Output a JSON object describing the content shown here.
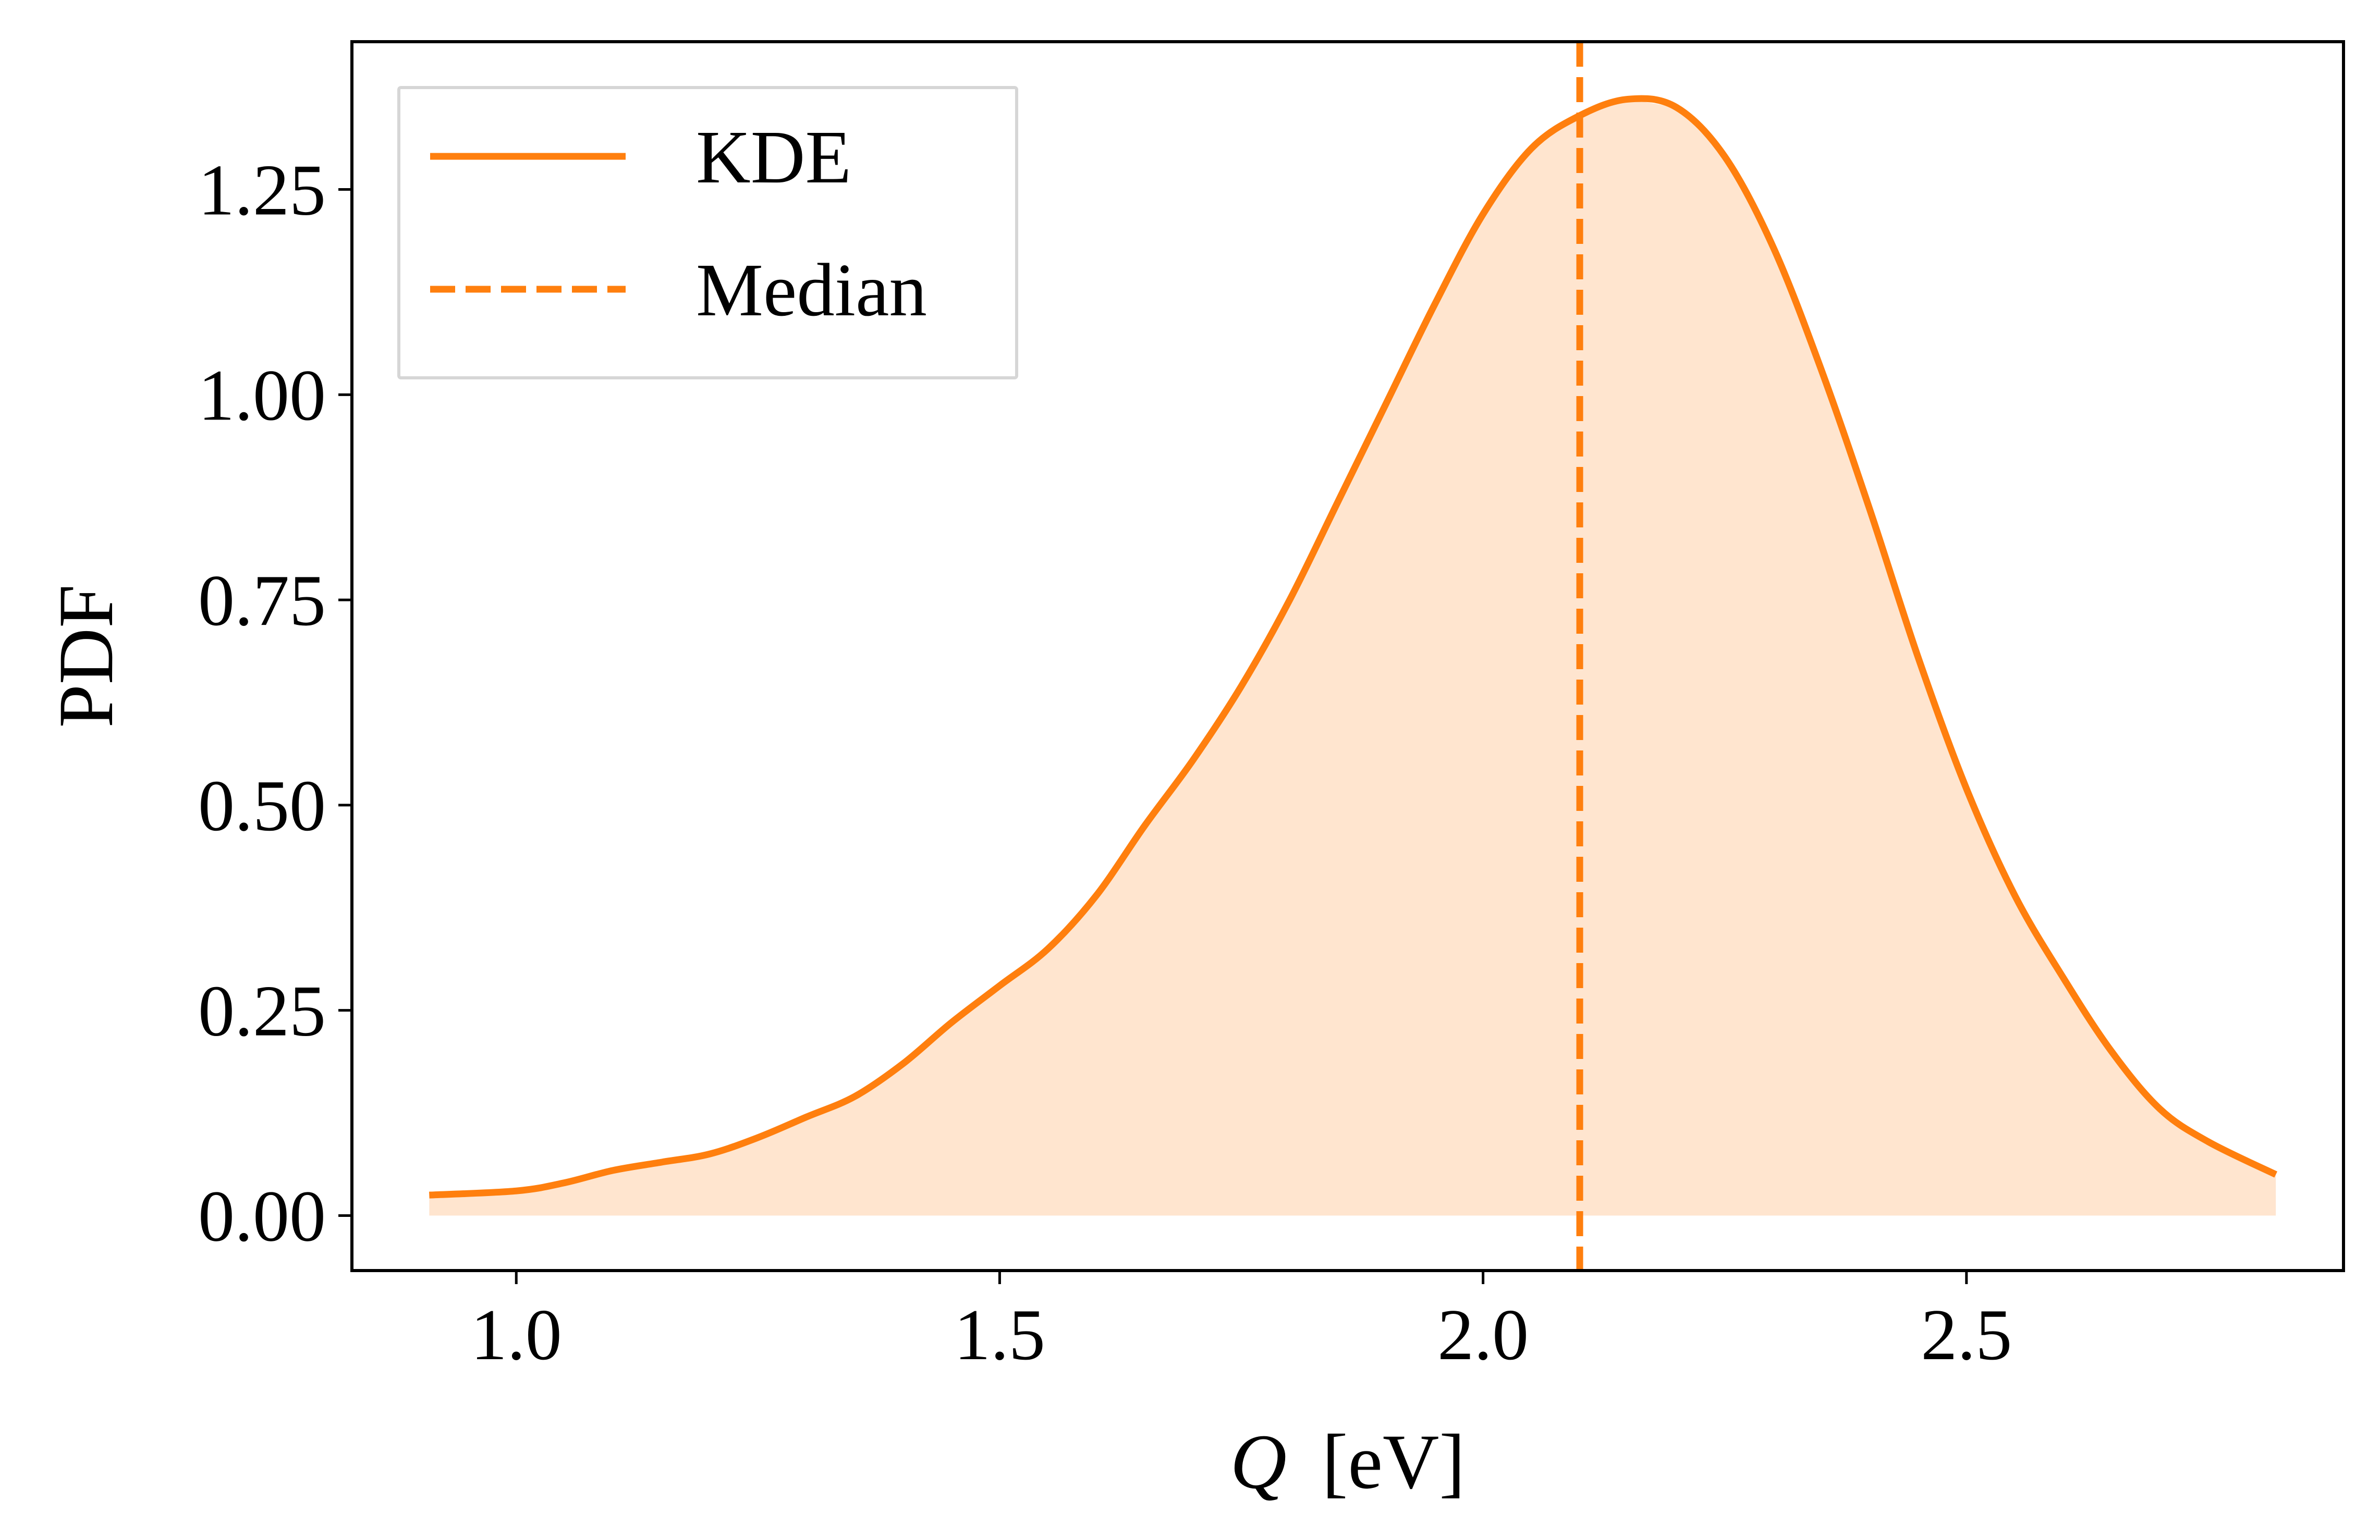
{
  "chart_data": {
    "type": "area",
    "xlabel": "Q [eV]",
    "xlabel_parts": {
      "symbol": "Q",
      "unit": "[eV]"
    },
    "ylabel": "PDF",
    "xlim": [
      0.83,
      2.89
    ],
    "ylim": [
      -0.067,
      1.43
    ],
    "x_ticks": [
      1.0,
      1.5,
      2.0,
      2.5
    ],
    "x_tick_labels": [
      "1.0",
      "1.5",
      "2.0",
      "2.5"
    ],
    "y_ticks": [
      0.0,
      0.25,
      0.5,
      0.75,
      1.0,
      1.25
    ],
    "y_tick_labels": [
      "0.00",
      "0.25",
      "0.50",
      "0.75",
      "1.00",
      "1.25"
    ],
    "grid": false,
    "legend": {
      "position": "top-left",
      "entries": [
        {
          "label": "KDE",
          "style": "solid"
        },
        {
          "label": "Median",
          "style": "dashed"
        }
      ]
    },
    "series": [
      {
        "name": "KDE",
        "color": "#ff7f0e",
        "fill_color": "#ff7f0e",
        "fill_opacity": 0.2,
        "x": [
          0.91,
          1.0,
          1.05,
          1.1,
          1.15,
          1.2,
          1.25,
          1.3,
          1.35,
          1.4,
          1.45,
          1.5,
          1.55,
          1.6,
          1.65,
          1.7,
          1.75,
          1.8,
          1.85,
          1.9,
          1.95,
          2.0,
          2.05,
          2.1,
          2.15,
          2.2,
          2.25,
          2.3,
          2.35,
          2.4,
          2.45,
          2.5,
          2.55,
          2.6,
          2.65,
          2.7,
          2.75,
          2.82
        ],
        "y": [
          0.025,
          0.03,
          0.04,
          0.055,
          0.065,
          0.075,
          0.095,
          0.12,
          0.145,
          0.185,
          0.235,
          0.28,
          0.325,
          0.39,
          0.475,
          0.555,
          0.645,
          0.75,
          0.87,
          0.99,
          1.11,
          1.22,
          1.3,
          1.34,
          1.36,
          1.35,
          1.29,
          1.18,
          1.03,
          0.86,
          0.68,
          0.52,
          0.39,
          0.29,
          0.2,
          0.13,
          0.09,
          0.05
        ]
      }
    ],
    "median": {
      "name": "Median",
      "x": 2.1,
      "color": "#ff7f0e",
      "style": "dashed"
    }
  }
}
